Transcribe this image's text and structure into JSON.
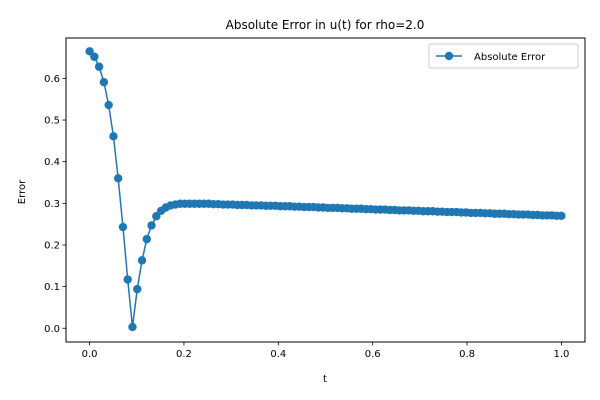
{
  "chart_data": {
    "type": "line",
    "title": "Absolute Error in u(t) for rho=2.0",
    "xlabel": "t",
    "ylabel": "Error",
    "xlim": [
      -0.05,
      1.05
    ],
    "ylim": [
      -0.033,
      0.697
    ],
    "xticks": [
      "0.0",
      "0.2",
      "0.4",
      "0.6",
      "0.8",
      "1.0"
    ],
    "yticks": [
      "0.0",
      "0.1",
      "0.2",
      "0.3",
      "0.4",
      "0.5",
      "0.6"
    ],
    "grid": false,
    "legend_position": "upper right",
    "marker": "circle",
    "series": [
      {
        "name": "Absolute Error",
        "color": "#1f77b4",
        "x": [
          0.0,
          0.0101,
          0.0202,
          0.0303,
          0.0404,
          0.0505,
          0.0606,
          0.0707,
          0.0808,
          0.0909,
          0.101,
          0.1111,
          0.1212,
          0.1313,
          0.1414,
          0.1515,
          0.1616,
          0.1717,
          0.1818,
          0.1919,
          0.202,
          0.2121,
          0.2222,
          0.2323,
          0.2424,
          0.2525,
          0.2626,
          0.2727,
          0.2828,
          0.2929,
          0.303,
          0.3131,
          0.3232,
          0.3333,
          0.3434,
          0.3535,
          0.3636,
          0.3737,
          0.3838,
          0.3939,
          0.404,
          0.4141,
          0.4242,
          0.4343,
          0.4444,
          0.4545,
          0.4646,
          0.4747,
          0.4848,
          0.4949,
          0.5051,
          0.5152,
          0.5253,
          0.5354,
          0.5455,
          0.5556,
          0.5657,
          0.5758,
          0.5859,
          0.596,
          0.6061,
          0.6162,
          0.6263,
          0.6364,
          0.6465,
          0.6566,
          0.6667,
          0.6768,
          0.6869,
          0.697,
          0.7071,
          0.7172,
          0.7273,
          0.7374,
          0.7475,
          0.7576,
          0.7677,
          0.7778,
          0.7879,
          0.798,
          0.8081,
          0.8182,
          0.8283,
          0.8384,
          0.8485,
          0.8586,
          0.8687,
          0.8788,
          0.8889,
          0.899,
          0.9091,
          0.9192,
          0.9293,
          0.9394,
          0.9495,
          0.9596,
          0.9697,
          0.9798,
          0.9899,
          1.0
        ],
        "y": [
          0.665,
          0.652,
          0.628,
          0.591,
          0.536,
          0.461,
          0.36,
          0.243,
          0.117,
          0.003,
          0.094,
          0.163,
          0.214,
          0.247,
          0.269,
          0.282,
          0.29,
          0.295,
          0.297,
          0.299,
          0.299,
          0.299,
          0.299,
          0.299,
          0.299,
          0.299,
          0.298,
          0.298,
          0.297,
          0.297,
          0.297,
          0.296,
          0.296,
          0.296,
          0.295,
          0.295,
          0.295,
          0.294,
          0.294,
          0.294,
          0.293,
          0.293,
          0.293,
          0.292,
          0.292,
          0.291,
          0.291,
          0.291,
          0.29,
          0.29,
          0.289,
          0.289,
          0.289,
          0.288,
          0.288,
          0.287,
          0.287,
          0.287,
          0.286,
          0.286,
          0.285,
          0.285,
          0.285,
          0.284,
          0.284,
          0.283,
          0.283,
          0.283,
          0.282,
          0.282,
          0.281,
          0.281,
          0.281,
          0.28,
          0.28,
          0.279,
          0.279,
          0.279,
          0.278,
          0.278,
          0.277,
          0.277,
          0.277,
          0.276,
          0.276,
          0.275,
          0.275,
          0.275,
          0.274,
          0.274,
          0.273,
          0.273,
          0.273,
          0.272,
          0.272,
          0.271,
          0.271,
          0.271,
          0.27,
          0.27
        ]
      }
    ]
  }
}
